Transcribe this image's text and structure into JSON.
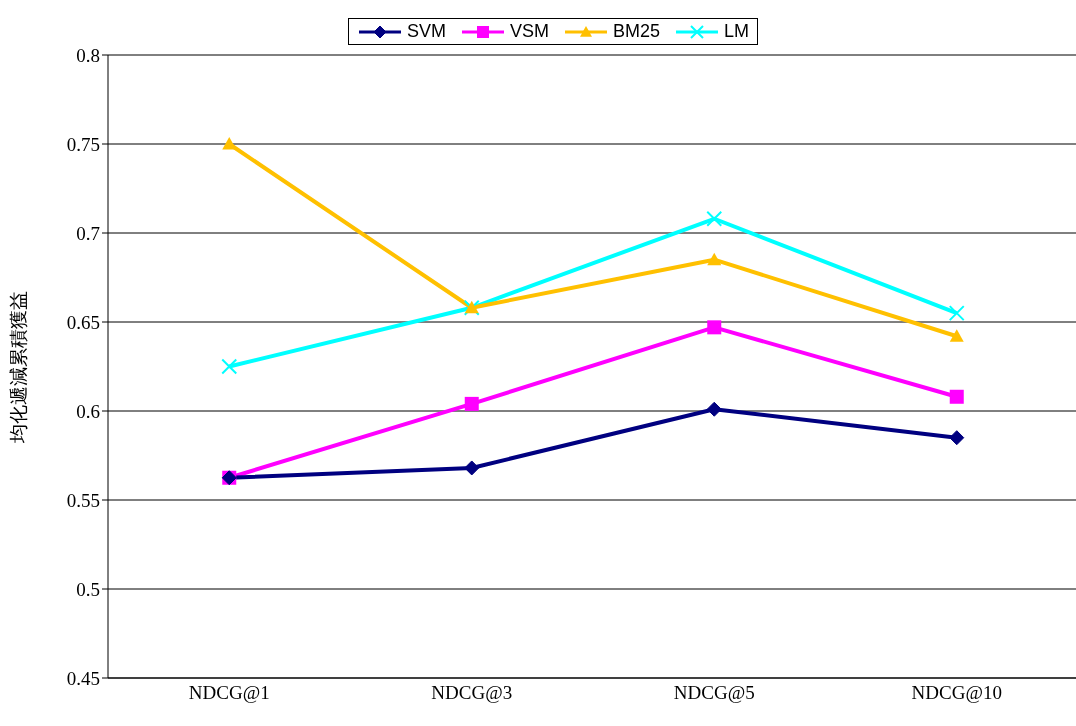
{
  "chart_data": {
    "type": "line",
    "ylabel": "均化遞減累積獲益",
    "categories": [
      "NDCG@1",
      "NDCG@3",
      "NDCG@5",
      "NDCG@10"
    ],
    "series": [
      {
        "name": "SVM",
        "color": "#000080",
        "marker": "diamond",
        "values": [
          0.5625,
          0.568,
          0.601,
          0.585
        ]
      },
      {
        "name": "VSM",
        "color": "#ff00ff",
        "marker": "square",
        "values": [
          0.5625,
          0.604,
          0.647,
          0.608
        ]
      },
      {
        "name": "BM25",
        "color": "#ffc000",
        "marker": "triangle",
        "values": [
          0.75,
          0.658,
          0.685,
          0.642
        ]
      },
      {
        "name": "LM",
        "color": "#00ffff",
        "marker": "cross",
        "values": [
          0.625,
          0.658,
          0.708,
          0.655
        ]
      }
    ],
    "ylim": [
      0.45,
      0.8
    ],
    "yticks": [
      0.45,
      0.5,
      0.55,
      0.6,
      0.65,
      0.7,
      0.75,
      0.8
    ],
    "grid": "y",
    "legend": "top",
    "line_style": "solid"
  }
}
